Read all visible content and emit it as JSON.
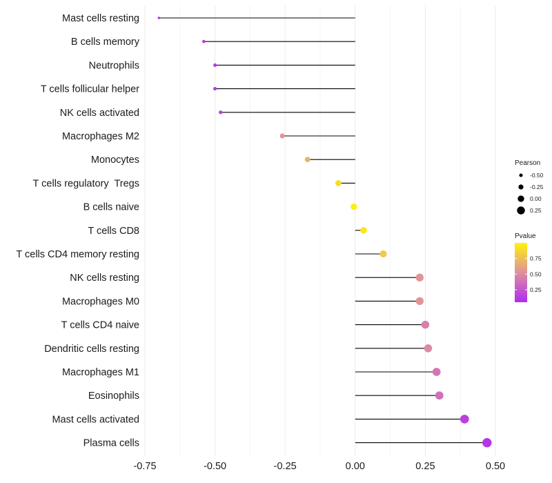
{
  "chart_data": {
    "type": "lollipop",
    "categories": [
      "Mast cells resting",
      "B cells memory",
      "Neutrophils",
      "T cells follicular helper",
      "NK cells activated",
      "Macrophages M2",
      "Monocytes",
      "T cells regulatory  Tregs",
      "B cells naive",
      "T cells CD8",
      "T cells CD4 memory resting",
      "NK cells resting",
      "Macrophages M0",
      "T cells CD4 naive",
      "Dendritic cells resting",
      "Macrophages M1",
      "Eosinophils",
      "Mast cells activated",
      "Plasma cells"
    ],
    "pearson": [
      -0.7,
      -0.54,
      -0.5,
      -0.5,
      -0.48,
      -0.26,
      -0.17,
      -0.06,
      -0.005,
      0.03,
      0.1,
      0.23,
      0.23,
      0.25,
      0.26,
      0.29,
      0.3,
      0.39,
      0.47
    ],
    "pvalue": [
      0.05,
      0.15,
      0.12,
      0.12,
      0.15,
      0.55,
      0.7,
      0.9,
      0.98,
      0.95,
      0.8,
      0.55,
      0.55,
      0.45,
      0.5,
      0.4,
      0.38,
      0.15,
      0.1
    ],
    "xlim": [
      -0.75,
      0.5
    ],
    "xticks": [
      "-0.75",
      "-0.50",
      "-0.25",
      "0.00",
      "0.25",
      "0.50"
    ],
    "xtick_values": [
      -0.75,
      -0.5,
      -0.25,
      0.0,
      0.25,
      0.5
    ],
    "grid": true,
    "size_legend": {
      "title": "Pearson",
      "labels": [
        "-0.50",
        "-0.25",
        "0.00",
        "0.25"
      ],
      "values": [
        -0.5,
        -0.25,
        0.0,
        0.25
      ]
    },
    "color_legend": {
      "title": "Pvalue",
      "labels": [
        "0.75",
        "0.50",
        "0.25"
      ],
      "values": [
        0.75,
        0.5,
        0.25
      ],
      "range": [
        0.05,
        1.0
      ],
      "low_color": "#b02cf0",
      "mid_color": "#df8f9f",
      "high_color": "#fff30a"
    },
    "stem_color": "#000000",
    "grid_color": "#ebebeb"
  }
}
